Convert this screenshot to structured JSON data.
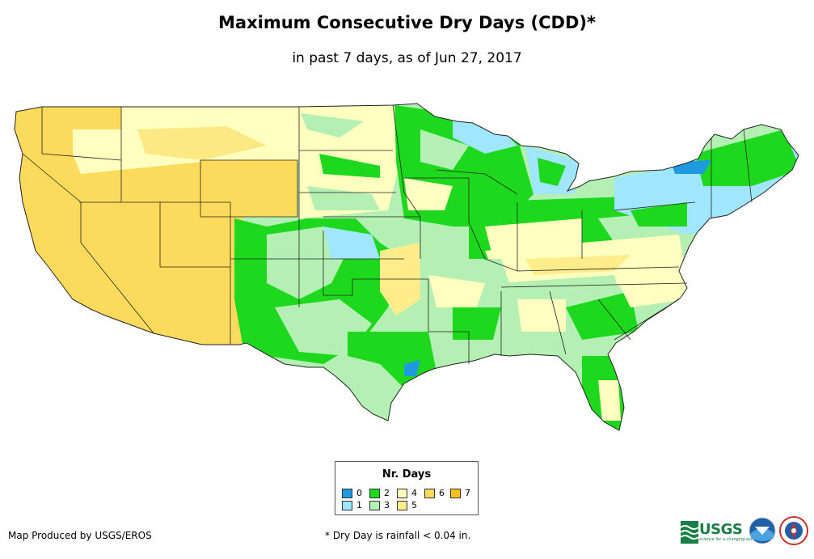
{
  "title": "Maximum Consecutive Dry Days (CDD)*",
  "subtitle": "in past 7 days, as of Jun 27, 2017",
  "legend": {
    "title": "Nr. Days",
    "items": [
      {
        "label": "0",
        "color": "#1e9be0"
      },
      {
        "label": "1",
        "color": "#a0e6ff"
      },
      {
        "label": "2",
        "color": "#1ed81e"
      },
      {
        "label": "3",
        "color": "#b4f0b4"
      },
      {
        "label": "4",
        "color": "#ffffc0"
      },
      {
        "label": "5",
        "color": "#ffed8c"
      },
      {
        "label": "6",
        "color": "#fcdb5c"
      },
      {
        "label": "7",
        "color": "#fcc01e"
      }
    ]
  },
  "footer": {
    "credit": "Map Produced by USGS/EROS",
    "footnote": "* Dry Day is rainfall < 0.04 in."
  },
  "logos": {
    "usgs": "USGS",
    "usgs_tagline": "science for a changing world",
    "noaa": "noaa",
    "nws": "national weather service"
  },
  "map_colors": {
    "water_background": "#ffffff",
    "border": "#222222"
  }
}
